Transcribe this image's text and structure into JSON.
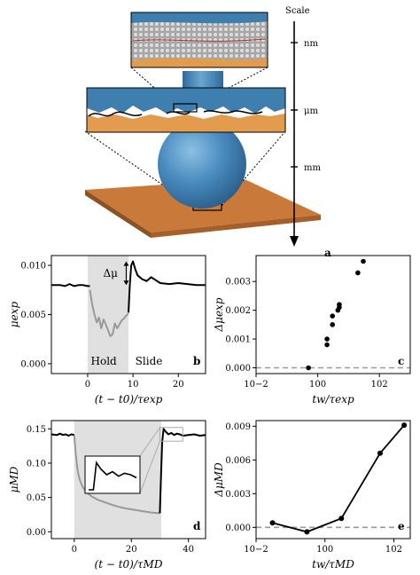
{
  "figure": {
    "panel_a": {
      "label": "a",
      "scale_title": "Scale",
      "scale_ticks": [
        "nm",
        "μm",
        "mm"
      ],
      "colors": {
        "blue": "#3f7fb0",
        "orange": "#e39b4d",
        "board": "#c97a3a"
      }
    }
  },
  "chart_data": [
    {
      "id": "b",
      "type": "line",
      "panel_label": "b",
      "xlabel": "(t − t0)/τexp",
      "ylabel": "μexp",
      "xlim": [
        -8,
        26
      ],
      "ylim": [
        -0.001,
        0.011
      ],
      "xticks": [
        "0",
        "10",
        "20"
      ],
      "xtick_values": [
        0,
        10,
        20
      ],
      "yticks": [
        "0.000",
        "0.005",
        "0.010"
      ],
      "ytick_values": [
        0.0,
        0.005,
        0.01
      ],
      "shaded_region": [
        0,
        9
      ],
      "annotations": [
        "Δμ",
        "Hold",
        "Slide"
      ],
      "series": [
        {
          "color": "#000000",
          "x": [
            -8,
            -6,
            -5,
            -4,
            -3,
            -2,
            -1,
            0,
            0.5
          ],
          "y": [
            0.008,
            0.008,
            0.0079,
            0.0081,
            0.0079,
            0.008,
            0.008,
            0.0079,
            0.0079
          ]
        },
        {
          "color": "#999999",
          "x": [
            0.5,
            1,
            1.5,
            2,
            2.5,
            3,
            3.5,
            4,
            4.5,
            5,
            5.5,
            6,
            6.5,
            7,
            7.5,
            8,
            8.5,
            9
          ],
          "y": [
            0.0075,
            0.006,
            0.005,
            0.0042,
            0.0047,
            0.0036,
            0.0045,
            0.004,
            0.0034,
            0.0028,
            0.003,
            0.0041,
            0.0036,
            0.004,
            0.0044,
            0.0046,
            0.0049,
            0.0051
          ]
        },
        {
          "color": "#000000",
          "x": [
            9,
            9.3,
            9.6,
            10,
            10.5,
            11,
            12,
            13,
            14,
            15,
            16,
            18,
            20,
            22,
            24,
            26
          ],
          "y": [
            0.0052,
            0.008,
            0.01,
            0.0104,
            0.0096,
            0.009,
            0.0086,
            0.0084,
            0.0088,
            0.0085,
            0.0082,
            0.0081,
            0.0082,
            0.0081,
            0.008,
            0.008
          ]
        }
      ]
    },
    {
      "id": "c",
      "type": "scatter",
      "panel_label": "c",
      "xlabel": "tw/τexp",
      "ylabel": "Δμexp",
      "xscale": "log",
      "xlim": [
        0.01,
        1000
      ],
      "ylim": [
        -0.0002,
        0.0039
      ],
      "xticks": [
        "10−2",
        "100",
        "102"
      ],
      "xtick_values": [
        0.01,
        1,
        100
      ],
      "yticks": [
        "0.000",
        "0.001",
        "0.002",
        "0.003"
      ],
      "ytick_values": [
        0.0,
        0.001,
        0.002,
        0.003
      ],
      "baseline": 0,
      "x": [
        0.5,
        2,
        2,
        3,
        3,
        4.5,
        5,
        5,
        20,
        30
      ],
      "y": [
        0.0,
        0.0008,
        0.001,
        0.0015,
        0.0018,
        0.002,
        0.0022,
        0.0021,
        0.0033,
        0.0037
      ]
    },
    {
      "id": "d",
      "type": "line",
      "panel_label": "d",
      "xlabel": "(t − t0)/τMD",
      "ylabel": "μMD",
      "xlim": [
        -8,
        46
      ],
      "ylim": [
        -0.01,
        0.162
      ],
      "xticks": [
        "0",
        "20",
        "40"
      ],
      "xtick_values": [
        0,
        20,
        40
      ],
      "yticks": [
        "0.00",
        "0.05",
        "0.10",
        "0.15"
      ],
      "ytick_values": [
        0.0,
        0.05,
        0.1,
        0.15
      ],
      "shaded_region": [
        0,
        30.5
      ],
      "series": [
        {
          "color": "#000000",
          "x": [
            -8,
            -6,
            -5,
            -4,
            -3,
            -2,
            -1,
            0
          ],
          "y": [
            0.142,
            0.141,
            0.143,
            0.141,
            0.142,
            0.14,
            0.142,
            0.141
          ]
        },
        {
          "color": "#999999",
          "x": [
            0,
            0.5,
            1,
            1.5,
            2,
            3,
            4,
            5,
            6,
            8,
            10,
            12,
            15,
            18,
            21,
            24,
            27,
            30
          ],
          "y": [
            0.14,
            0.115,
            0.095,
            0.083,
            0.075,
            0.065,
            0.059,
            0.055,
            0.052,
            0.047,
            0.044,
            0.041,
            0.037,
            0.034,
            0.032,
            0.03,
            0.028,
            0.027
          ]
        },
        {
          "color": "#000000",
          "x": [
            30,
            30.4,
            30.8,
            31.3,
            32,
            33,
            34,
            35,
            36,
            37,
            38,
            40,
            42,
            44,
            46
          ],
          "y": [
            0.027,
            0.08,
            0.13,
            0.15,
            0.146,
            0.142,
            0.144,
            0.141,
            0.143,
            0.142,
            0.14,
            0.141,
            0.142,
            0.14,
            0.141
          ]
        }
      ],
      "inset_zoom": {
        "x": [
          30,
          38
        ],
        "y": [
          0.132,
          0.152
        ]
      }
    },
    {
      "id": "e",
      "type": "line",
      "panel_label": "e",
      "xlabel": "tw/τMD",
      "ylabel": "ΔμMD",
      "xscale": "log",
      "xlim": [
        0.01,
        300
      ],
      "ylim": [
        -0.001,
        0.0095
      ],
      "xticks": [
        "10−2",
        "100",
        "102"
      ],
      "xtick_values": [
        0.01,
        1,
        100
      ],
      "yticks": [
        "0.000",
        "0.003",
        "0.006",
        "0.009"
      ],
      "ytick_values": [
        0.0,
        0.003,
        0.006,
        0.009
      ],
      "baseline": 0,
      "x": [
        0.03,
        0.3,
        3,
        40,
        200
      ],
      "y": [
        0.0004,
        -0.0004,
        0.0008,
        0.0066,
        0.0091
      ]
    }
  ]
}
